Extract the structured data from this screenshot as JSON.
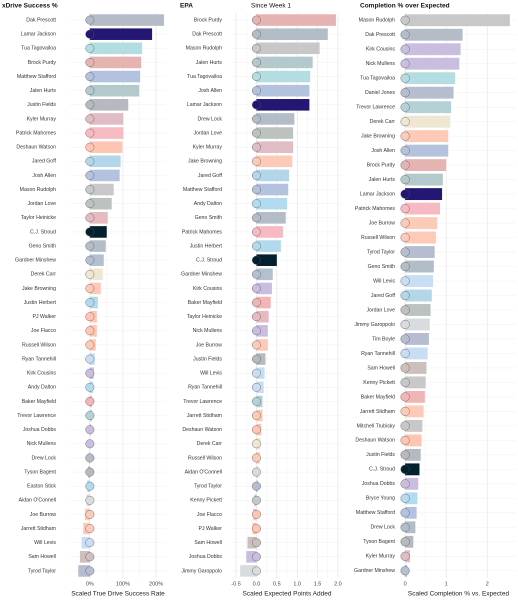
{
  "chart_data": [
    {
      "type": "hbar",
      "title": "xDrive Success %",
      "xlabel": "Scaled True Drive Success Rate",
      "categories": [
        "Dak Prescott",
        "Lamar Jackson",
        "Tua Tagovailoa",
        "Brock Purdy",
        "Matthew Stafford",
        "Jalen Hurts",
        "Justin Fields",
        "Kyler Murray",
        "Patrick Mahomes",
        "Deshaun Watson",
        "Jared Goff",
        "Josh Allen",
        "Mason Rudolph",
        "Jordan Love",
        "Taylor Heinicke",
        "C.J. Stroud",
        "Geno Smith",
        "Gardner Minshew",
        "Derek Carr",
        "Jake Browning",
        "Justin Herbert",
        "PJ Walker",
        "Joe Flacco",
        "Russell Wilson",
        "Ryan Tannehill",
        "Kirk Cousins",
        "Andy Dalton",
        "Baker Mayfield",
        "Trevor Lawrence",
        "Joshua Dobbs",
        "Nick Mullens",
        "Drew Lock",
        "Tyson Bagent",
        "Easton Stick",
        "Aidan O'Connell",
        "Joe Burrow",
        "Jarrett Stidham",
        "Will Levis",
        "Sam Howell",
        "Tyrod Taylor"
      ],
      "values": [
        224,
        188,
        158,
        155,
        152,
        149,
        116,
        101,
        101,
        98,
        93,
        90,
        72,
        66,
        54,
        51,
        48,
        42,
        39,
        33,
        24,
        21,
        21,
        18,
        15,
        12,
        9,
        6,
        6,
        3,
        0,
        -2,
        -5,
        -8,
        -10,
        -15,
        -20,
        -25,
        -30,
        -35
      ],
      "colors": [
        "#b4bcc8",
        "#241773",
        "#b3dde0",
        "#e6b3b3",
        "#b3c2df",
        "#b3c9cb",
        "#b6b9bf",
        "#e0bdc5",
        "#f7bac3",
        "#ffc5b3",
        "#b3d6e9",
        "#b3c2dd",
        "#c8c8c8",
        "#bcc3bf",
        "#e5bac1",
        "#03202f",
        "#b3bdc8",
        "#b3c0cf",
        "#efe6d4",
        "#fecab8",
        "#b3d9ee",
        "#ffc5b3",
        "#ffc5b3",
        "#fecab8",
        "#c9def4",
        "#cabee0",
        "#b3dbef",
        "#f2b5b5",
        "#b3d1d6",
        "#cabee0",
        "#cabee0",
        "#b3bdc8",
        "#b6b9bf",
        "#b3d9ee",
        "#d9dcde",
        "#fecab8",
        "#fecab8",
        "#c9def4",
        "#cebfbf",
        "#b6bdd1"
      ],
      "xlim": [
        -60,
        230
      ],
      "xticks": [
        {
          "value": 0,
          "label": "0%"
        },
        {
          "value": 100,
          "label": "100%"
        },
        {
          "value": 200,
          "label": "200%"
        }
      ],
      "grid": true
    },
    {
      "type": "hbar",
      "title": "EPA",
      "subtitle": "Since Week 1",
      "xlabel": "Scaled Expected Points Added",
      "categories": [
        "Brock Purdy",
        "Dak Prescott",
        "Mason Rudolph",
        "Jalen Hurts",
        "Tua Tagovailoa",
        "Josh Allen",
        "Lamar Jackson",
        "Drew Lock",
        "Jordan Love",
        "Kyler Murray",
        "Jake Browning",
        "Jared Goff",
        "Matthew Stafford",
        "Andy Dalton",
        "Geno Smith",
        "Patrick Mahomes",
        "Justin Herbert",
        "C.J. Stroud",
        "Gardner Minshew",
        "Kirk Cousins",
        "Baker Mayfield",
        "Taylor Heinicke",
        "Nick Mullens",
        "Joe Burrow",
        "Justin Fields",
        "Will Levis",
        "Ryan Tannehill",
        "Trevor Lawrence",
        "Jarrett Stidham",
        "Deshaun Watson",
        "Derek Carr",
        "Russell Wilson",
        "Aidan O'Connell",
        "Tyrod Taylor",
        "Kenny Pickett",
        "Joe Flacco",
        "PJ Walker",
        "Sam Howell",
        "Joshua Dobbs",
        "Jimmy Garoppolo"
      ],
      "values": [
        1.95,
        1.75,
        1.55,
        1.38,
        1.32,
        1.3,
        1.3,
        0.93,
        0.9,
        0.9,
        0.88,
        0.8,
        0.78,
        0.75,
        0.72,
        0.65,
        0.6,
        0.5,
        0.4,
        0.38,
        0.35,
        0.3,
        0.28,
        0.28,
        0.22,
        0.2,
        0.18,
        0.15,
        0.15,
        0.12,
        0.1,
        0.08,
        0.05,
        0.03,
        -0.05,
        -0.08,
        -0.1,
        -0.22,
        -0.25,
        -0.4
      ],
      "colors": [
        "#e6b3b3",
        "#b4bcc8",
        "#c8c8c8",
        "#b3c9cb",
        "#b3dde0",
        "#b3c2dd",
        "#241773",
        "#b3bdc8",
        "#bcc3bf",
        "#e0bdc5",
        "#fecab8",
        "#b3d6e9",
        "#b3c2df",
        "#b3dbef",
        "#b3bdc8",
        "#f7bac3",
        "#b3d9ee",
        "#03202f",
        "#b3c0cf",
        "#cabee0",
        "#f2b5b5",
        "#e5bac1",
        "#cabee0",
        "#fecab8",
        "#b6b9bf",
        "#c9def4",
        "#c9def4",
        "#b3d1d6",
        "#fecab8",
        "#ffc5b3",
        "#efe6d4",
        "#fecab8",
        "#d9dcde",
        "#b6bdd1",
        "#c8c8c8",
        "#ffc5b3",
        "#ffc5b3",
        "#cebfbf",
        "#cabee0",
        "#d9dcde"
      ],
      "xlim": [
        -0.6,
        2.1
      ],
      "xticks": [
        -0.5,
        {
          "value": 0,
          "label": "0.0"
        },
        0.5,
        {
          "value": 1,
          "label": "1.0"
        },
        1.5,
        {
          "value": 2,
          "label": "2.0"
        }
      ],
      "grid": true
    },
    {
      "type": "hbar",
      "title": "Completion % over Expected",
      "xlabel": "Scaled Completion % vs. Expected",
      "categories": [
        "Mason Rudolph",
        "Dak Prescott",
        "Kirk Cousins",
        "Nick Mullens",
        "Tua Tagovailoa",
        "Daniel Jones",
        "Trevor Lawrence",
        "Derek Carr",
        "Jake Browning",
        "Josh Allen",
        "Brock Purdy",
        "Jalen Hurts",
        "Lamar Jackson",
        "Patrick Mahomes",
        "Joe Burrow",
        "Russell Wilson",
        "Tyrod Taylor",
        "Geno Smith",
        "Will Levis",
        "Jared Goff",
        "Jordan Love",
        "Jimmy Garoppolo",
        "Tim Boyle",
        "Ryan Tannehill",
        "Sam Howell",
        "Kenny Pickett",
        "Baker Mayfield",
        "Jarrett Stidham",
        "Mitchell Trubisky",
        "Deshaun Watson",
        "Justin Fields",
        "C.J. Stroud",
        "Joshua Dobbs",
        "Bryce Young",
        "Matthew Stafford",
        "Drew Lock",
        "Tyson Bagent",
        "Kyler Murray",
        "Gardner Minshew"
      ],
      "values": [
        2.55,
        1.4,
        1.35,
        1.32,
        1.22,
        1.18,
        1.12,
        1.1,
        1.05,
        1.05,
        1.0,
        0.92,
        0.9,
        0.85,
        0.78,
        0.75,
        0.72,
        0.7,
        0.68,
        0.65,
        0.62,
        0.6,
        0.58,
        0.55,
        0.52,
        0.5,
        0.48,
        0.45,
        0.42,
        0.4,
        0.38,
        0.35,
        0.32,
        0.3,
        0.28,
        0.25,
        0.2,
        0.12,
        0.05
      ],
      "colors": [
        "#c8c8c8",
        "#b4bcc8",
        "#cabee0",
        "#cabee0",
        "#b3dde0",
        "#b6bdd1",
        "#b3d1d6",
        "#efe6d4",
        "#fecab8",
        "#b3c2dd",
        "#e6b3b3",
        "#b3c9cb",
        "#241773",
        "#f7bac3",
        "#fecab8",
        "#fecab8",
        "#b6bdd1",
        "#b3bdc8",
        "#c9def4",
        "#b3d6e9",
        "#bcc3bf",
        "#d9dcde",
        "#b6bdd1",
        "#c9def4",
        "#cebfbf",
        "#c8c8c8",
        "#f2b5b5",
        "#fecab8",
        "#c8c8c8",
        "#ffc5b3",
        "#b6b9bf",
        "#03202f",
        "#cabee0",
        "#b3dbef",
        "#b3c2df",
        "#b3bdc8",
        "#b6b9bf",
        "#e0bdc5",
        "#b3c0cf"
      ],
      "xlim": [
        -0.1,
        2.7
      ],
      "xticks": [
        0,
        1,
        2
      ],
      "grid": true
    }
  ]
}
